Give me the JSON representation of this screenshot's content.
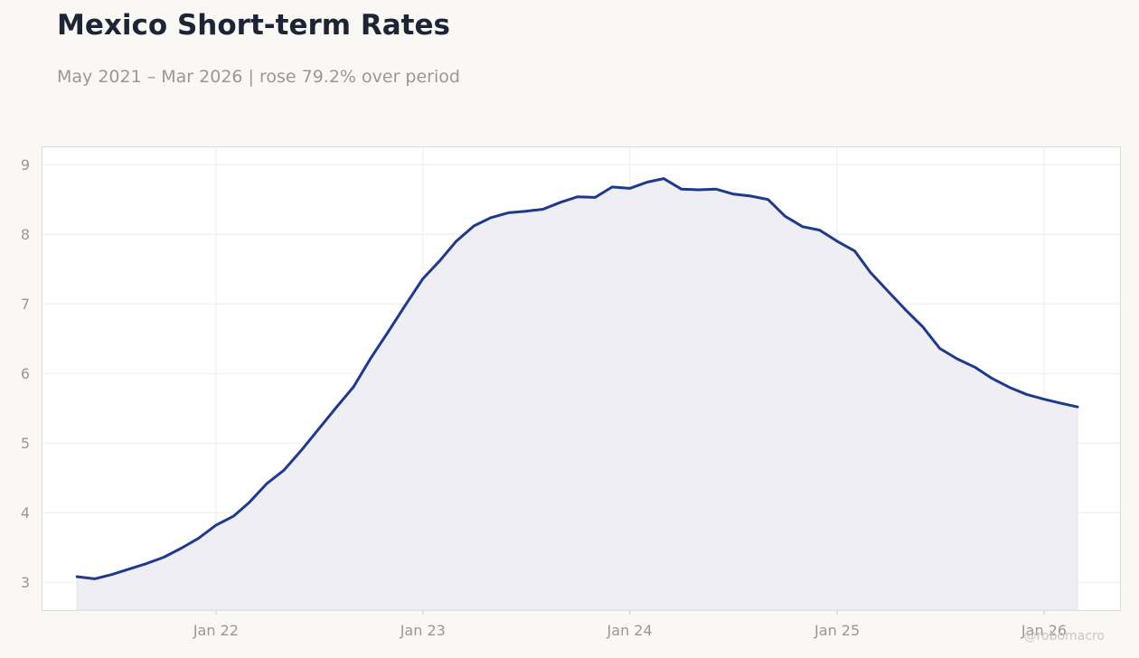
{
  "title": "Mexico Short-term Rates",
  "subtitle": "May 2021 – Mar 2026 | rose 79.2% over period",
  "watermark": "@robomacro",
  "colors": {
    "background": "#f9f8f5",
    "line": "#1f3a8a",
    "fill": "#eeeef4",
    "grid": "#eeeeee",
    "axis_text": "#9a9893"
  },
  "chart_data": {
    "type": "area",
    "title": "Mexico Short-term Rates",
    "subtitle": "May 2021 – Mar 2026 | rose 79.2% over period",
    "xlabel": "",
    "ylabel": "",
    "grid": true,
    "legend": "none",
    "ylim": [
      2.6,
      9.25
    ],
    "xlim": [
      "2021-03-01",
      "2026-05-15"
    ],
    "yticks": [
      3,
      4,
      5,
      6,
      7,
      8,
      9
    ],
    "xticks": [
      {
        "date": "2022-01-01",
        "label": "Jan 22"
      },
      {
        "date": "2023-01-01",
        "label": "Jan 23"
      },
      {
        "date": "2024-01-01",
        "label": "Jan 24"
      },
      {
        "date": "2025-01-01",
        "label": "Jan 25"
      },
      {
        "date": "2026-01-01",
        "label": "Jan 26"
      }
    ],
    "x": [
      "2021-05",
      "2021-06",
      "2021-07",
      "2021-08",
      "2021-09",
      "2021-10",
      "2021-11",
      "2021-12",
      "2022-01",
      "2022-02",
      "2022-03",
      "2022-04",
      "2022-05",
      "2022-06",
      "2022-07",
      "2022-08",
      "2022-09",
      "2022-10",
      "2022-11",
      "2022-12",
      "2023-01",
      "2023-02",
      "2023-03",
      "2023-04",
      "2023-05",
      "2023-06",
      "2023-07",
      "2023-08",
      "2023-09",
      "2023-10",
      "2023-11",
      "2023-12",
      "2024-01",
      "2024-02",
      "2024-03",
      "2024-04",
      "2024-05",
      "2024-06",
      "2024-07",
      "2024-08",
      "2024-09",
      "2024-10",
      "2024-11",
      "2024-12",
      "2025-01",
      "2025-02",
      "2025-03",
      "2025-04",
      "2025-05",
      "2025-06",
      "2025-07",
      "2025-08",
      "2025-09",
      "2025-10",
      "2025-11",
      "2025-12",
      "2026-01",
      "2026-02",
      "2026-03"
    ],
    "series": [
      {
        "values": [
          3.08,
          3.05,
          3.11,
          3.19,
          3.27,
          3.36,
          3.49,
          3.63,
          3.82,
          3.95,
          4.15,
          4.42,
          4.61,
          4.9,
          5.2,
          5.51,
          5.81,
          6.22,
          6.6,
          6.98,
          7.36,
          7.63,
          7.9,
          8.12,
          8.24,
          8.31,
          8.33,
          8.36,
          8.46,
          8.54,
          8.53,
          8.68,
          8.66,
          8.75,
          8.8,
          8.65,
          8.64,
          8.65,
          8.58,
          8.55,
          8.5,
          8.26,
          8.11,
          8.06,
          7.9,
          7.76,
          7.45,
          7.18,
          6.92,
          6.67,
          6.36,
          6.21,
          6.09,
          5.93,
          5.8,
          5.7,
          5.63,
          5.57,
          5.52
        ]
      }
    ]
  }
}
